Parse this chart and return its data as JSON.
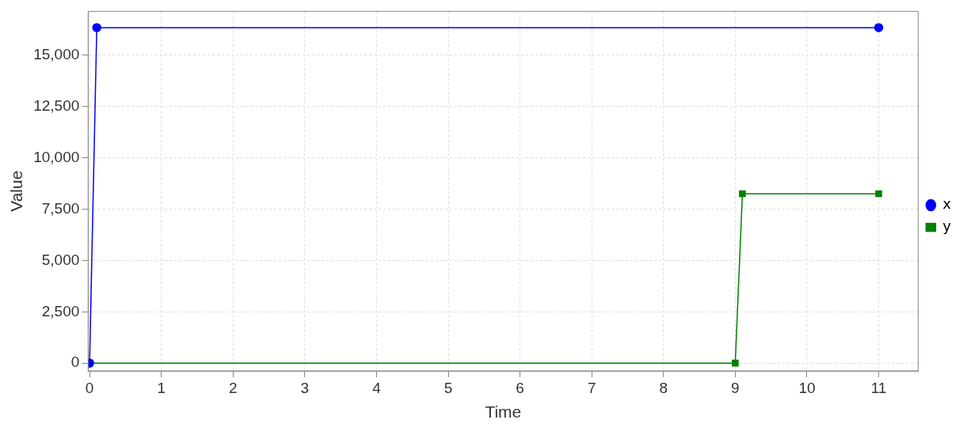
{
  "chart_data": {
    "type": "line",
    "xlabel": "Time",
    "ylabel": "Value",
    "xlim": [
      -0.02,
      11.55
    ],
    "xticks": [
      0,
      1,
      2,
      3,
      4,
      5,
      6,
      7,
      8,
      9,
      10,
      11
    ],
    "ylim": [
      -380,
      17140
    ],
    "yticks": [
      0,
      {
        "value": 2500,
        "label": "2,500"
      },
      {
        "value": 5000,
        "label": "5,000"
      },
      {
        "value": 7500,
        "label": "7,500"
      },
      {
        "value": 10000,
        "label": "10,000"
      },
      {
        "value": 12500,
        "label": "12,500"
      },
      {
        "value": 15000,
        "label": "15,000"
      }
    ],
    "series": [
      {
        "name": "x",
        "color": "#0000ff",
        "marker": "circle",
        "x": [
          0,
          0.1,
          11
        ],
        "values": [
          0,
          16350,
          16350
        ]
      },
      {
        "name": "y",
        "color": "#008000",
        "marker": "square",
        "x": [
          0,
          9,
          9.1,
          11
        ],
        "values": [
          0,
          0,
          8250,
          8250
        ]
      }
    ],
    "grid": true,
    "legend": "right",
    "line_style": "solid"
  }
}
